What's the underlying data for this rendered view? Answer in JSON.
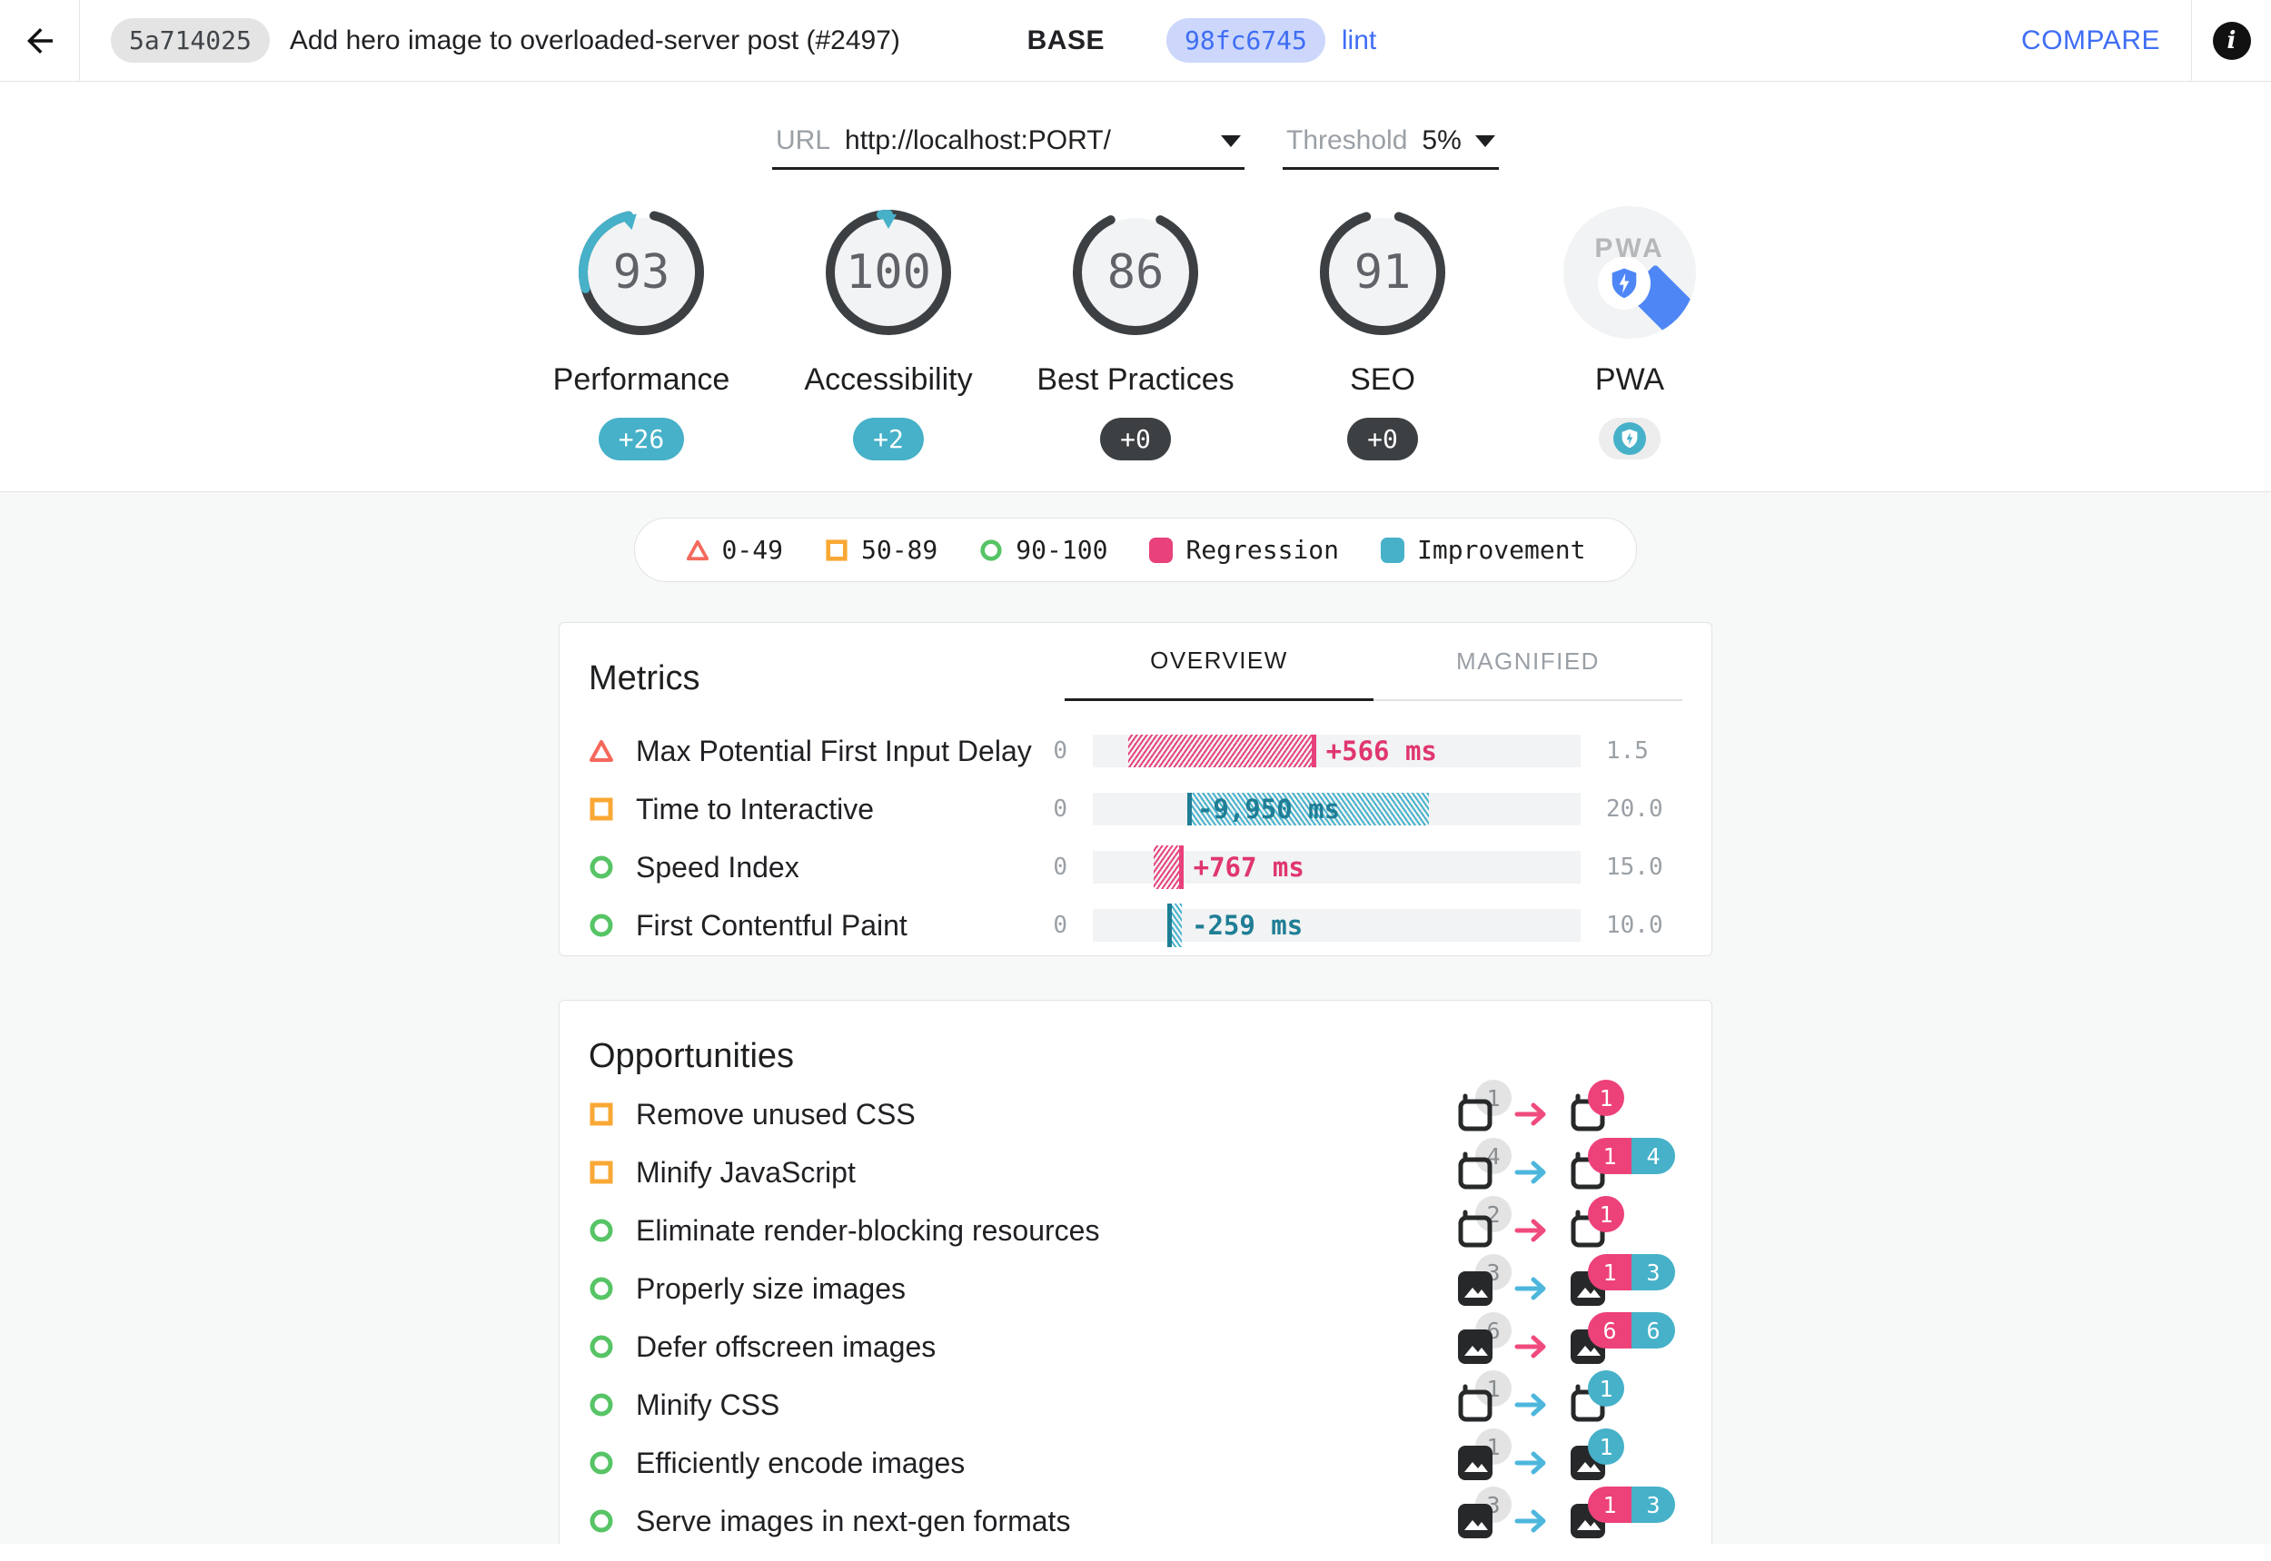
{
  "header": {
    "base": {
      "hash": "5a714025",
      "title": "Add hero image to overloaded-server post (#2497)",
      "tag": "BASE"
    },
    "compare": {
      "hash": "98fc6745",
      "branch": "lint",
      "action": "COMPARE"
    }
  },
  "controls": {
    "url": {
      "label": "URL",
      "value": "http://localhost:PORT/"
    },
    "threshold": {
      "label": "Threshold",
      "value": "5%"
    }
  },
  "scores": [
    {
      "category": "Performance",
      "value": 93,
      "delta": "+26",
      "delta_type": "improvement",
      "delta_points": 26
    },
    {
      "category": "Accessibility",
      "value": 100,
      "delta": "+2",
      "delta_type": "improvement",
      "delta_points": 2
    },
    {
      "category": "Best Practices",
      "value": 86,
      "delta": "+0",
      "delta_type": "neutral",
      "delta_points": 0
    },
    {
      "category": "SEO",
      "value": 91,
      "delta": "+0",
      "delta_type": "neutral",
      "delta_points": 0
    },
    {
      "category": "PWA",
      "type": "pwa-badge"
    }
  ],
  "legend": {
    "items": [
      {
        "icon": "triangle-outline",
        "label": "0-49"
      },
      {
        "icon": "square-outline",
        "label": "50-89"
      },
      {
        "icon": "circle-outline",
        "label": "90-100"
      },
      {
        "icon": "swatch-regression",
        "label": "Regression"
      },
      {
        "icon": "swatch-improvement",
        "label": "Improvement"
      }
    ]
  },
  "metrics": {
    "title": "Metrics",
    "tabs": [
      "OVERVIEW",
      "MAGNIFIED"
    ],
    "active_tab": "OVERVIEW",
    "rows": [
      {
        "icon": "triangle",
        "label": "Max Potential First Input Delay",
        "min": "0",
        "max": "1.5",
        "value": "+566 ms",
        "type": "regression",
        "bar_start_pct": 7.3,
        "bar_end_pct": 45.8,
        "tall": false
      },
      {
        "icon": "square",
        "label": "Time to Interactive",
        "min": "0",
        "max": "20.0",
        "value": "-9,950 ms",
        "type": "improvement",
        "bar_start_pct": 19.4,
        "bar_end_pct": 68.9,
        "tall": false
      },
      {
        "icon": "circle",
        "label": "Speed Index",
        "min": "0",
        "max": "15.0",
        "value": "+767 ms",
        "type": "regression",
        "bar_start_pct": 12.5,
        "bar_end_pct": 18.6,
        "tall": true
      },
      {
        "icon": "circle",
        "label": "First Contentful Paint",
        "min": "0",
        "max": "10.0",
        "value": "-259 ms",
        "type": "improvement",
        "bar_start_pct": 15.3,
        "bar_end_pct": 18.3,
        "tall": true
      }
    ]
  },
  "opportunities": {
    "title": "Opportunities",
    "rows": [
      {
        "icon": "square",
        "label": "Remove unused CSS",
        "resource": "page",
        "base_count": "1",
        "arrow": "regression",
        "compare_badges": [
          {
            "color": "pink",
            "value": "1"
          }
        ]
      },
      {
        "icon": "square",
        "label": "Minify JavaScript",
        "resource": "page",
        "base_count": "4",
        "arrow": "improvement",
        "compare_badges": [
          {
            "color": "pink",
            "value": "1"
          },
          {
            "color": "teal",
            "value": "4"
          }
        ]
      },
      {
        "icon": "circle",
        "label": "Eliminate render-blocking resources",
        "resource": "page",
        "base_count": "2",
        "arrow": "regression",
        "compare_badges": [
          {
            "color": "pink",
            "value": "1"
          }
        ]
      },
      {
        "icon": "circle",
        "label": "Properly size images",
        "resource": "image",
        "base_count": "3",
        "arrow": "improvement",
        "compare_badges": [
          {
            "color": "pink",
            "value": "1"
          },
          {
            "color": "teal",
            "value": "3"
          }
        ]
      },
      {
        "icon": "circle",
        "label": "Defer offscreen images",
        "resource": "image",
        "base_count": "6",
        "arrow": "regression",
        "compare_badges": [
          {
            "color": "pink",
            "value": "6"
          },
          {
            "color": "teal",
            "value": "6"
          }
        ]
      },
      {
        "icon": "circle",
        "label": "Minify CSS",
        "resource": "page",
        "base_count": "1",
        "arrow": "improvement",
        "compare_badges": [
          {
            "color": "teal",
            "value": "1"
          }
        ]
      },
      {
        "icon": "circle",
        "label": "Efficiently encode images",
        "resource": "image",
        "base_count": "1",
        "arrow": "improvement",
        "compare_badges": [
          {
            "color": "teal",
            "value": "1"
          }
        ]
      },
      {
        "icon": "circle",
        "label": "Serve images in next-gen formats",
        "resource": "image",
        "base_count": "3",
        "arrow": "improvement",
        "compare_badges": [
          {
            "color": "pink",
            "value": "1"
          },
          {
            "color": "teal",
            "value": "3"
          }
        ]
      }
    ]
  },
  "colors": {
    "regression_pink": "#e8417b",
    "improvement_teal": "#46b1c9",
    "pass_green": "#57c466",
    "average_orange": "#f9a835",
    "fail_red": "#f4695c",
    "ring_dark": "#3c4043",
    "accent_blue": "#3f6ef4",
    "pwa_blue": "#4e86f6"
  }
}
